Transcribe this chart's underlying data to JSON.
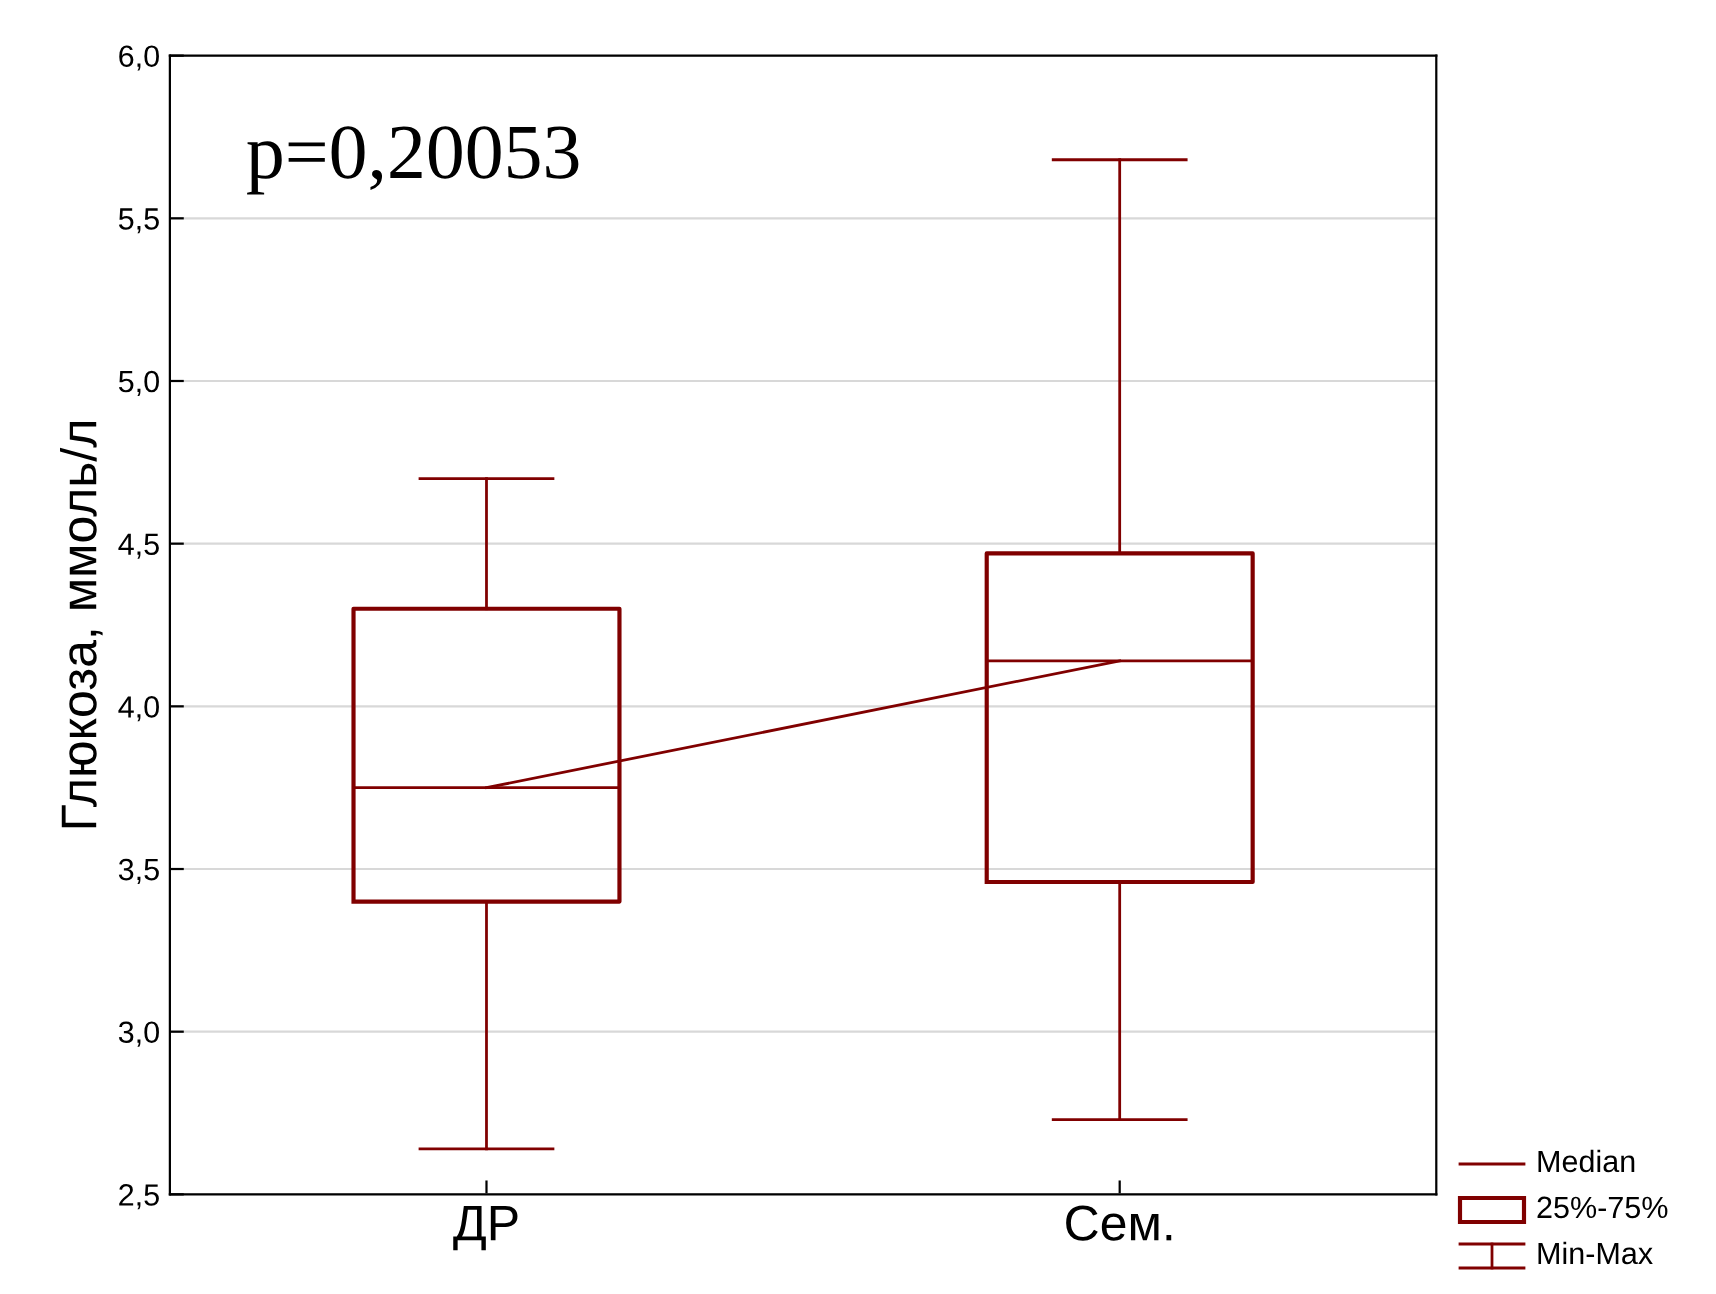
{
  "chart_data": {
    "type": "box",
    "ylabel": "Глюкоза, ммоль/л",
    "categories": [
      "ДР",
      "Сем."
    ],
    "boxes": [
      {
        "low": 2.64,
        "q1": 3.4,
        "median": 3.75,
        "q3": 4.3,
        "high": 4.7
      },
      {
        "low": 2.73,
        "q1": 3.46,
        "median": 4.14,
        "q3": 4.47,
        "high": 5.68
      }
    ],
    "color": "#800000",
    "series": [
      {
        "type": "line",
        "color": "#800000",
        "values": [
          3.75,
          4.14
        ]
      }
    ],
    "ylim": [
      2.5,
      6.0
    ],
    "yticks": [
      {
        "value": 2.5,
        "label": "2,5"
      },
      {
        "value": 3.0,
        "label": "3,0"
      },
      {
        "value": 3.5,
        "label": "3,5"
      },
      {
        "value": 4.0,
        "label": "4,0"
      },
      {
        "value": 4.5,
        "label": "4,5"
      },
      {
        "value": 5.0,
        "label": "5,0"
      },
      {
        "value": 5.5,
        "label": "5,5"
      },
      {
        "value": 6.0,
        "label": "6,0"
      }
    ],
    "grid": "y",
    "annotations": [
      "p=0,20053",
      "Median",
      "25%-75%",
      "Min-Max"
    ]
  }
}
